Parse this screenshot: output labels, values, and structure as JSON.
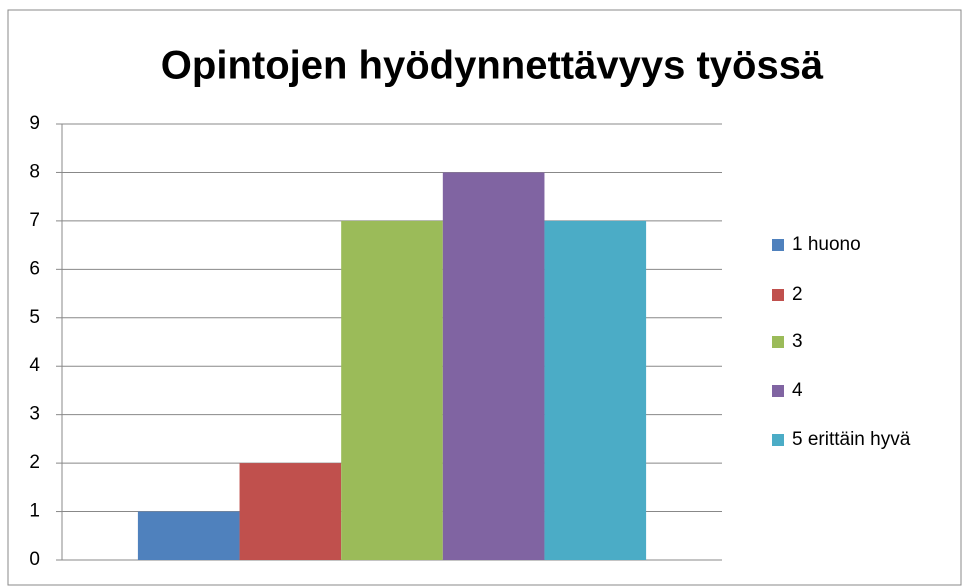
{
  "chart_data": {
    "type": "bar",
    "title": "Opintojen hyödynnettävyys työssä",
    "categories": [
      null
    ],
    "series": [
      {
        "name": "1 huono",
        "color": "#4f81bd",
        "values": [
          1
        ]
      },
      {
        "name": "2",
        "color": "#c0504d",
        "values": [
          2
        ]
      },
      {
        "name": "3",
        "color": "#9bbb59",
        "values": [
          7
        ]
      },
      {
        "name": "4",
        "color": "#8064a2",
        "values": [
          8
        ]
      },
      {
        "name": "5 erittäin hyvä",
        "color": "#4bacc6",
        "values": [
          7
        ]
      }
    ],
    "ylim": [
      0,
      9
    ],
    "yticks": [
      0,
      1,
      2,
      3,
      4,
      5,
      6,
      7,
      8,
      9
    ],
    "grid": true,
    "legend": "right"
  }
}
